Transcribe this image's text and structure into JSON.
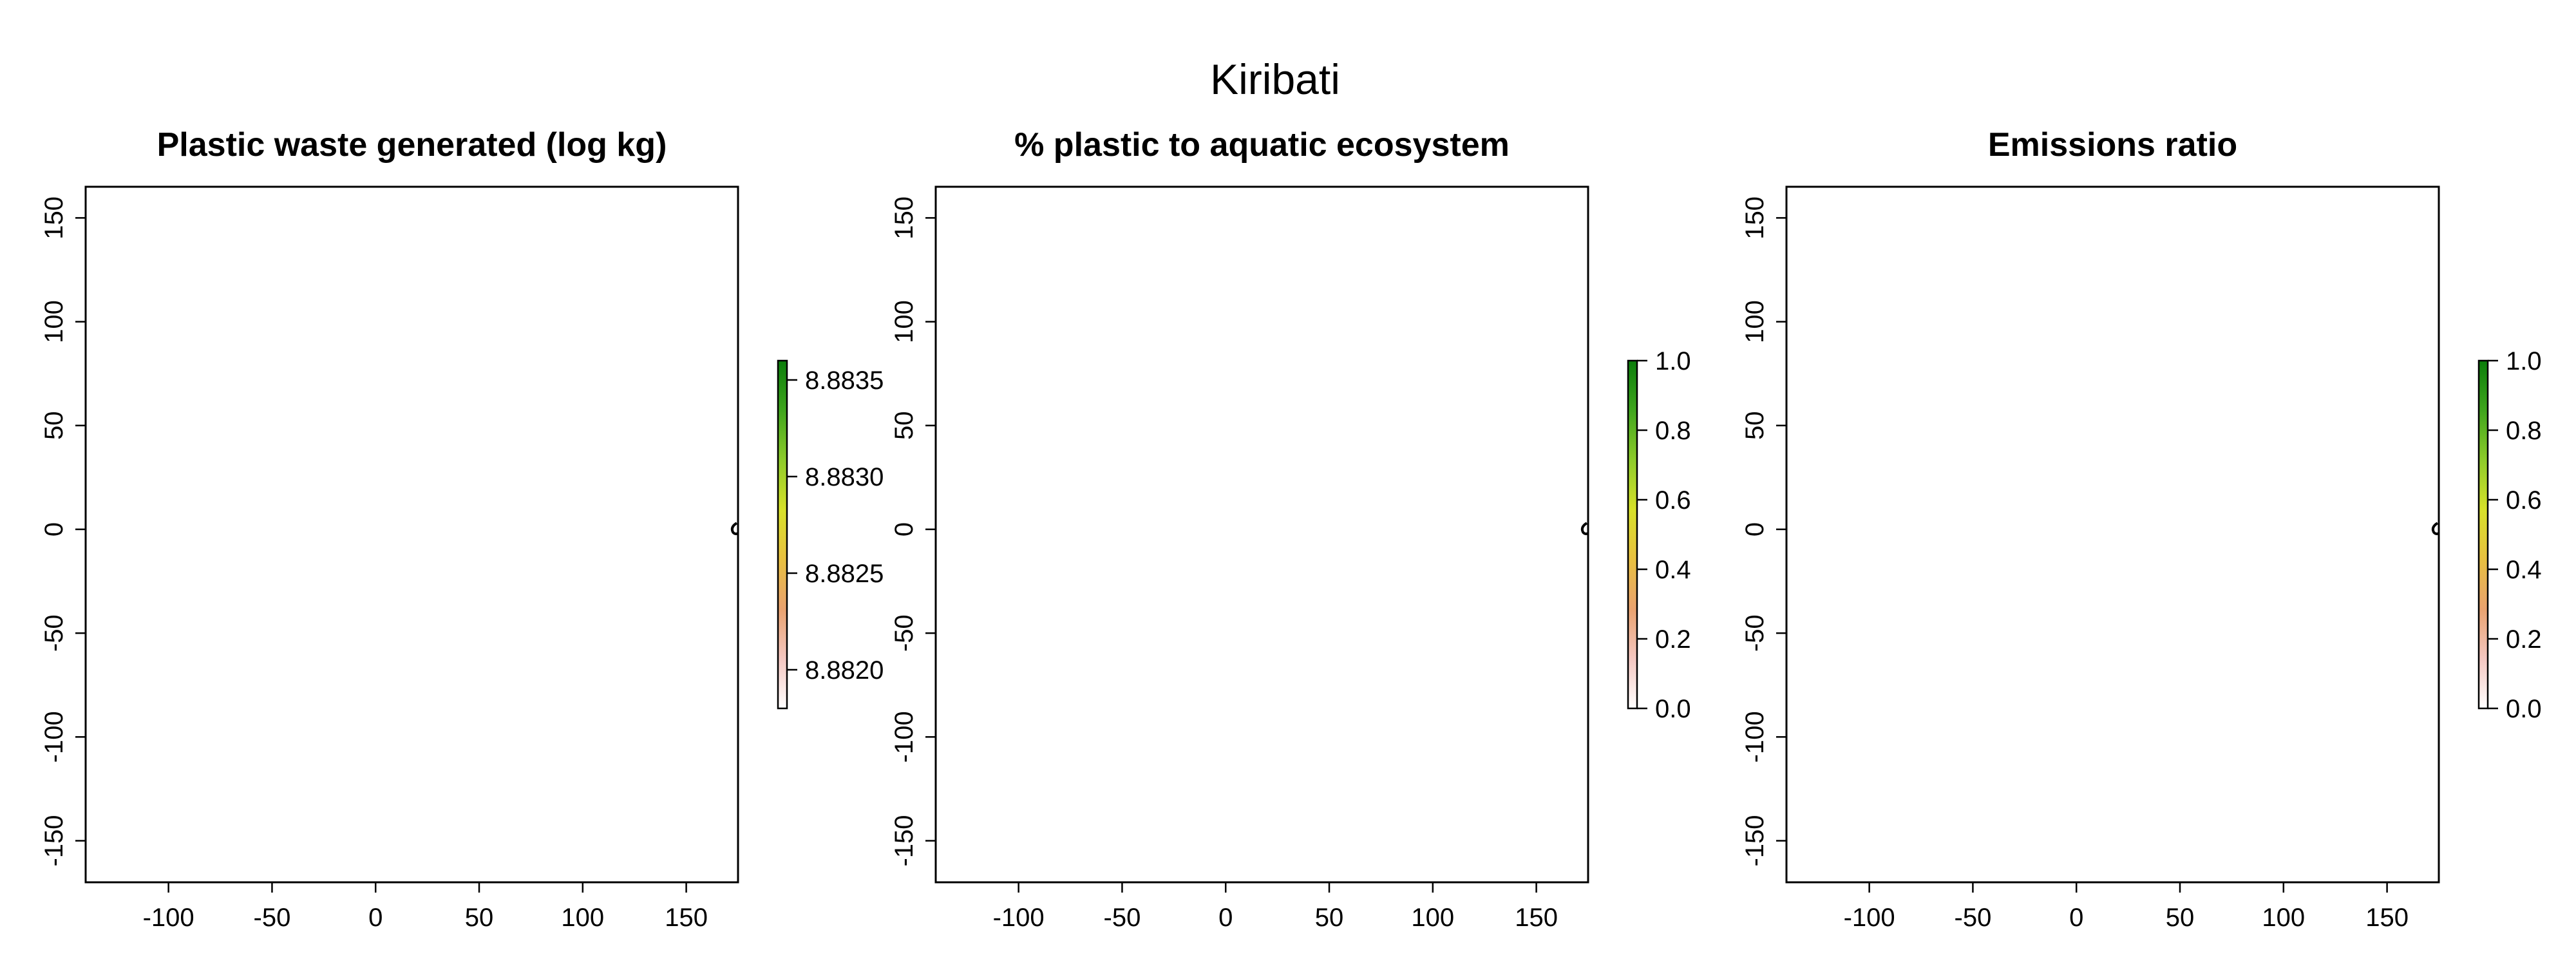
{
  "figure": {
    "title": "Kiribati"
  },
  "chart_data": [
    {
      "type": "heatmap",
      "title": "Plastic waste generated (log kg)",
      "xlabel": "",
      "ylabel": "",
      "xlim": [
        -140,
        175
      ],
      "ylim": [
        -170,
        165
      ],
      "x_ticks": [
        -100,
        -50,
        0,
        50,
        100,
        150
      ],
      "x_tick_labels": [
        "-100",
        "-50",
        "0",
        "50",
        "100",
        "150"
      ],
      "y_ticks": [
        -150,
        -100,
        -50,
        0,
        50,
        100,
        150
      ],
      "y_tick_labels": [
        "-150",
        "-100",
        "-50",
        "0",
        "50",
        "100",
        "150"
      ],
      "grid": false,
      "legend": {
        "type": "colorbar",
        "range": [
          8.8818,
          8.8836
        ],
        "ticks": [
          8.882,
          8.8825,
          8.883,
          8.8835
        ],
        "tick_labels": [
          "8.8820",
          "8.8825",
          "8.8830",
          "8.8835"
        ],
        "colors": [
          "#ffffff",
          "#f4c7c1",
          "#e9a26f",
          "#e8c040",
          "#d7e12a",
          "#8ecb2a",
          "#3fa51d",
          "#0b7d0b"
        ]
      }
    },
    {
      "type": "heatmap",
      "title": "% plastic to aquatic ecosystem",
      "xlabel": "",
      "ylabel": "",
      "xlim": [
        -140,
        175
      ],
      "ylim": [
        -170,
        165
      ],
      "x_ticks": [
        -100,
        -50,
        0,
        50,
        100,
        150
      ],
      "x_tick_labels": [
        "-100",
        "-50",
        "0",
        "50",
        "100",
        "150"
      ],
      "y_ticks": [
        -150,
        -100,
        -50,
        0,
        50,
        100,
        150
      ],
      "y_tick_labels": [
        "-150",
        "-100",
        "-50",
        "0",
        "50",
        "100",
        "150"
      ],
      "grid": false,
      "legend": {
        "type": "colorbar",
        "range": [
          0,
          1
        ],
        "ticks": [
          0,
          0.2,
          0.4,
          0.6,
          0.8,
          1.0
        ],
        "tick_labels": [
          "0.0",
          "0.2",
          "0.4",
          "0.6",
          "0.8",
          "1.0"
        ],
        "colors": [
          "#ffffff",
          "#f4c7c1",
          "#e9a26f",
          "#e8c040",
          "#d7e12a",
          "#8ecb2a",
          "#3fa51d",
          "#0b7d0b"
        ]
      }
    },
    {
      "type": "heatmap",
      "title": "Emissions ratio",
      "xlabel": "",
      "ylabel": "",
      "xlim": [
        -140,
        175
      ],
      "ylim": [
        -170,
        165
      ],
      "x_ticks": [
        -100,
        -50,
        0,
        50,
        100,
        150
      ],
      "x_tick_labels": [
        "-100",
        "-50",
        "0",
        "50",
        "100",
        "150"
      ],
      "y_ticks": [
        -150,
        -100,
        -50,
        0,
        50,
        100,
        150
      ],
      "y_tick_labels": [
        "-150",
        "-100",
        "-50",
        "0",
        "50",
        "100",
        "150"
      ],
      "grid": false,
      "legend": {
        "type": "colorbar",
        "range": [
          0,
          1
        ],
        "ticks": [
          0,
          0.2,
          0.4,
          0.6,
          0.8,
          1.0
        ],
        "tick_labels": [
          "0.0",
          "0.2",
          "0.4",
          "0.6",
          "0.8",
          "1.0"
        ],
        "colors": [
          "#ffffff",
          "#f4c7c1",
          "#e9a26f",
          "#e8c040",
          "#d7e12a",
          "#8ecb2a",
          "#3fa51d",
          "#0b7d0b"
        ]
      }
    }
  ]
}
